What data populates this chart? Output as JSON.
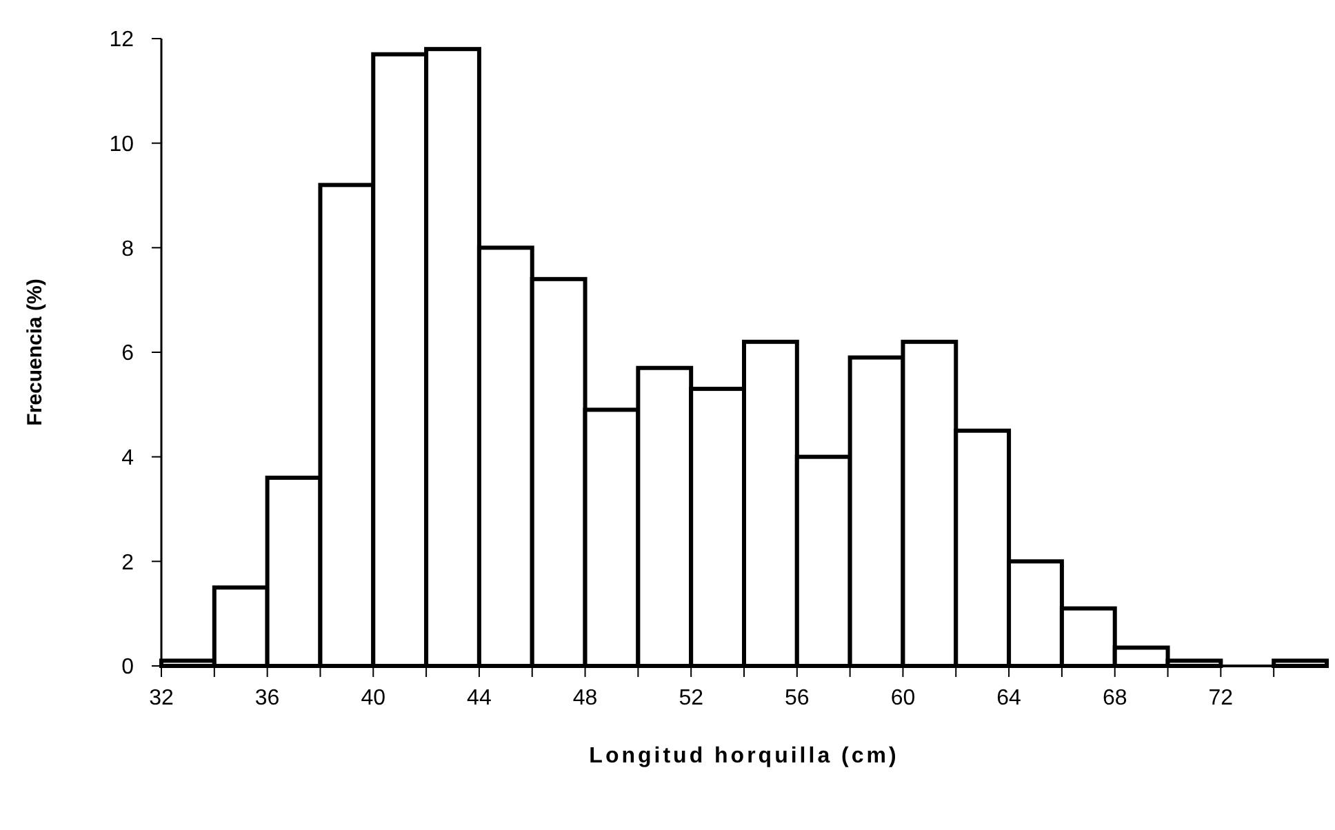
{
  "chart_data": {
    "type": "histogram",
    "xlabel": "Longitud horquilla (cm)",
    "ylabel": "Frecuencia (%)",
    "bins": [
      32,
      34,
      36,
      38,
      40,
      42,
      44,
      46,
      48,
      50,
      52,
      54,
      56,
      58,
      60,
      62,
      64,
      66,
      68,
      70,
      72,
      74,
      76
    ],
    "values": [
      0.1,
      1.5,
      3.6,
      9.2,
      11.7,
      11.8,
      8.0,
      7.4,
      4.9,
      5.7,
      5.3,
      6.2,
      4.0,
      5.9,
      6.2,
      4.5,
      2.0,
      1.1,
      0.35,
      0.1,
      0,
      0.1
    ],
    "color": "#ffffff",
    "xlim": [
      32,
      76
    ],
    "ylim": [
      0,
      12
    ],
    "xticks": [
      32,
      {
        "value": 34,
        "label": null
      },
      36,
      {
        "value": 38,
        "label": null
      },
      40,
      {
        "value": 42,
        "label": null
      },
      44,
      {
        "value": 46,
        "label": null
      },
      48,
      {
        "value": 50,
        "label": null
      },
      52,
      {
        "value": 54,
        "label": null
      },
      56,
      {
        "value": 58,
        "label": null
      },
      60,
      {
        "value": 62,
        "label": null
      },
      64,
      {
        "value": 66,
        "label": null
      },
      68,
      {
        "value": 70,
        "label": null
      },
      72,
      {
        "value": 74,
        "label": null
      }
    ],
    "yticks": [
      0,
      2,
      4,
      6,
      8,
      10,
      12
    ],
    "grid": false
  }
}
